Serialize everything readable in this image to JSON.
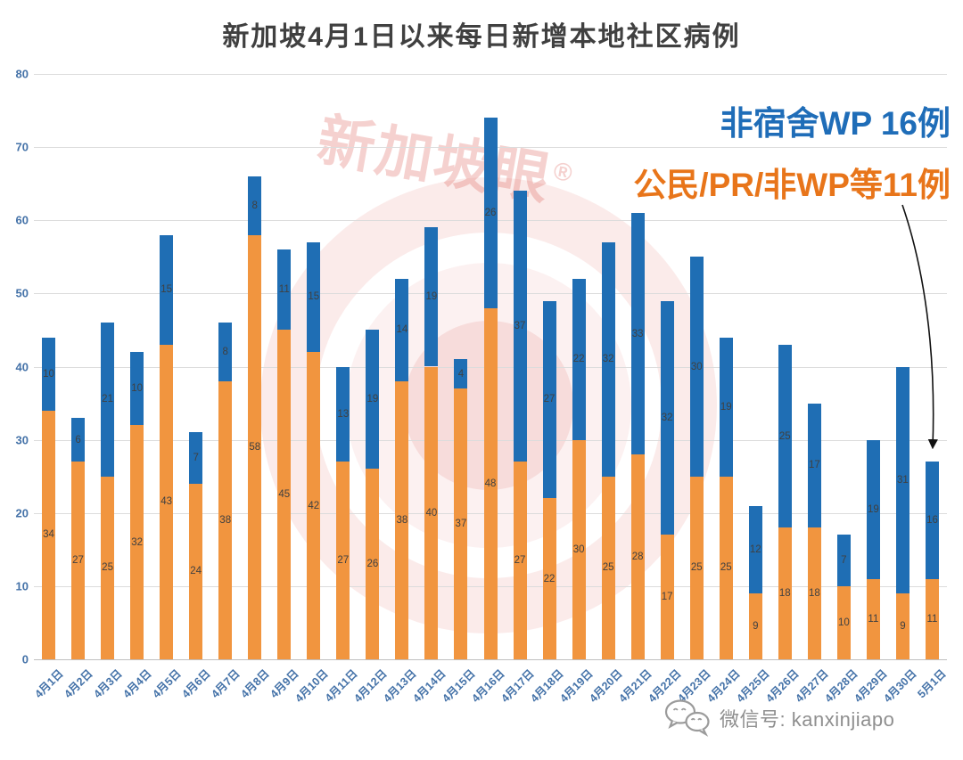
{
  "title": "新加坡4月1日以来每日新增本地社区病例",
  "annotations": {
    "blue": "非宿舍WP 16例",
    "orange": "公民/PR/非WP等11例"
  },
  "watermark": {
    "text": "新加坡眼",
    "registered": "®"
  },
  "footer": {
    "wechat": "微信号: kanxinjiapo"
  },
  "colors": {
    "bar_orange": "#F1953F",
    "bar_blue": "#1F6EB4",
    "annotation_blue": "#1F6DB8",
    "annotation_orange": "#E8751A",
    "axis_label": "#4472A8",
    "bar_value_label": "#404040",
    "gridline": "#DCDCDC",
    "watermark_pink": "#DE6860"
  },
  "chart_data": {
    "type": "bar",
    "stacked": true,
    "title": "新加坡4月1日以来每日新增本地社区病例",
    "categories": [
      "4月1日",
      "4月2日",
      "4月3日",
      "4月4日",
      "4月5日",
      "4月6日",
      "4月7日",
      "4月8日",
      "4月9日",
      "4月10日",
      "4月11日",
      "4月12日",
      "4月13日",
      "4月14日",
      "4月15日",
      "4月16日",
      "4月17日",
      "4月18日",
      "4月19日",
      "4月20日",
      "4月21日",
      "4月22日",
      "4月23日",
      "4月24日",
      "4月25日",
      "4月26日",
      "4月27日",
      "4月28日",
      "4月29日",
      "4月30日",
      "5月1日"
    ],
    "series": [
      {
        "name": "公民/PR/非WP等",
        "color": "#F1953F",
        "values": [
          34,
          27,
          25,
          32,
          43,
          24,
          38,
          58,
          45,
          42,
          27,
          26,
          38,
          40,
          37,
          48,
          27,
          22,
          30,
          25,
          28,
          17,
          25,
          25,
          9,
          18,
          18,
          10,
          11,
          9,
          11
        ]
      },
      {
        "name": "非宿舍WP",
        "color": "#1F6EB4",
        "values": [
          10,
          6,
          21,
          10,
          15,
          7,
          8,
          8,
          11,
          15,
          13,
          19,
          14,
          19,
          4,
          26,
          37,
          27,
          22,
          32,
          33,
          32,
          30,
          19,
          12,
          25,
          17,
          7,
          19,
          31,
          16
        ]
      }
    ],
    "totals": [
      44,
      33,
      46,
      42,
      58,
      31,
      46,
      66,
      56,
      57,
      40,
      45,
      52,
      59,
      41,
      74,
      64,
      49,
      52,
      57,
      61,
      49,
      55,
      44,
      21,
      43,
      35,
      17,
      30,
      40,
      27
    ],
    "ylim": [
      0,
      80
    ],
    "yticks": [
      0,
      10,
      20,
      30,
      40,
      50,
      60,
      70,
      80
    ],
    "grid": true,
    "legend": "none"
  }
}
